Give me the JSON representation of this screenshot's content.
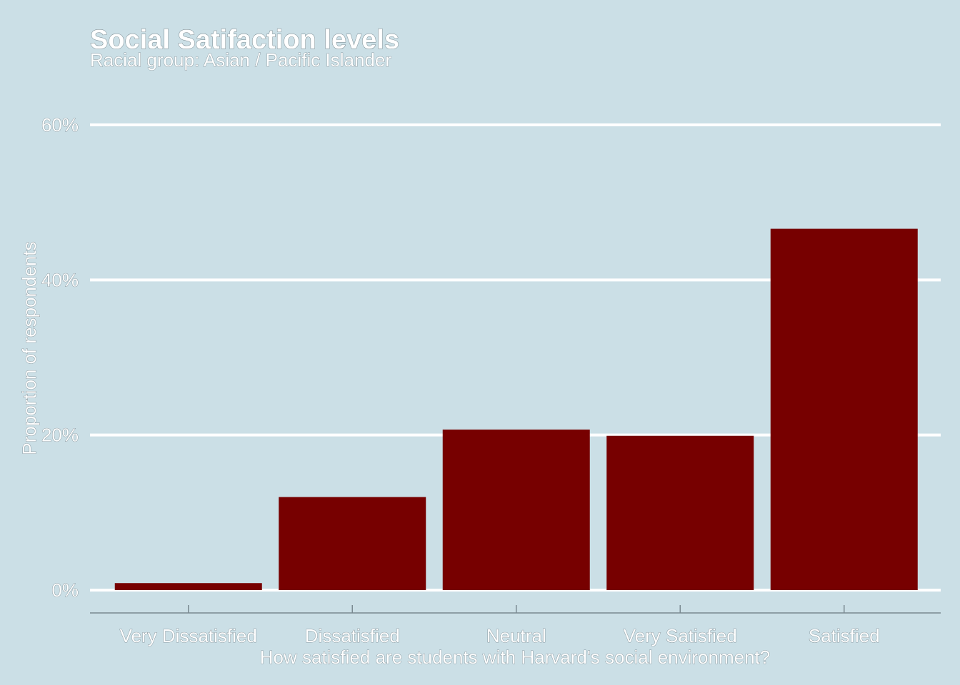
{
  "colors": {
    "background": "#cbdfe6",
    "bar": "#770000",
    "gridline": "#ffffff",
    "axis": "#7a8a91",
    "text": "#ffffff"
  },
  "chart_data": {
    "type": "bar",
    "title": "Social Satifaction levels",
    "subtitle": "Racial group: Asian / Pacific Islander",
    "xlabel": "How satisfied are students with Harvard's social environment?",
    "ylabel": "Proportion of respondents",
    "categories": [
      "Very Dissatisfied",
      "Dissatisfied",
      "Neutral",
      "Very Satisfied",
      "Satisfied"
    ],
    "values": [
      0.009,
      0.12,
      0.207,
      0.199,
      0.466
    ],
    "ylim": [
      0,
      0.6
    ],
    "yticks": [
      0,
      0.2,
      0.4,
      0.6
    ],
    "ytick_labels": [
      "0%",
      "20%",
      "40%",
      "60%"
    ],
    "grid": "horizontal major",
    "legend": "none"
  }
}
